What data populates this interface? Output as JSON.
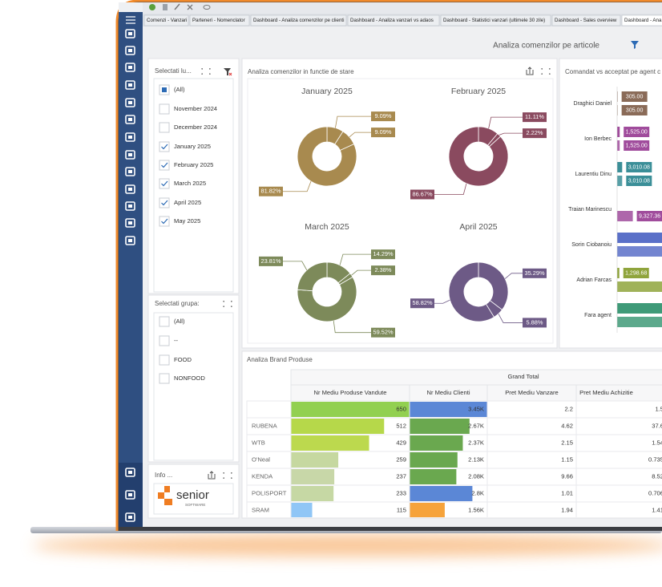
{
  "tabs": [
    "Comenzi - Vanzari",
    "Parteneri - Nomenclator",
    "Dashboard - Analiza comenzilor pe clienti",
    "Dashboard - Analiza vanzari vs adaos",
    "Dashboard - Statistici vanzari (ultimele 30 zile)",
    "Dashboard - Sales overview",
    "Dashboard - Ana"
  ],
  "header": {
    "title": "Analiza comenzilor pe articole"
  },
  "month_filter": {
    "title": "Selectati lu...",
    "items": [
      {
        "label": "(All)",
        "state": "partial"
      },
      {
        "label": "November 2024",
        "state": "unchecked"
      },
      {
        "label": "December 2024",
        "state": "unchecked"
      },
      {
        "label": "January 2025",
        "state": "checked"
      },
      {
        "label": "February 2025",
        "state": "checked"
      },
      {
        "label": "March 2025",
        "state": "checked"
      },
      {
        "label": "April 2025",
        "state": "checked"
      },
      {
        "label": "May 2025",
        "state": "checked"
      }
    ]
  },
  "group_filter": {
    "title": "Selectati grupa:",
    "items": [
      {
        "label": "(All)",
        "state": "unchecked"
      },
      {
        "label": "--",
        "state": "unchecked"
      },
      {
        "label": "FOOD",
        "state": "unchecked"
      },
      {
        "label": "NONFOOD",
        "state": "unchecked"
      }
    ]
  },
  "info": {
    "title": "Info ...",
    "logo": "senior",
    "logo_sub": "SOFTWARE"
  },
  "donut_panel": {
    "title": "Analiza comenzilor in functie de stare"
  },
  "chart_data": [
    {
      "type": "pie",
      "title": "January 2025",
      "values": [
        9.09,
        9.09,
        81.82
      ],
      "value_labels": [
        "9.09%",
        "9.09%",
        "81.82%"
      ],
      "color": "#a88a4f"
    },
    {
      "type": "pie",
      "title": "February 2025",
      "values": [
        11.11,
        2.22,
        86.67
      ],
      "value_labels": [
        "11.11%",
        "2.22%",
        "86.67%"
      ],
      "color": "#8a4a5f"
    },
    {
      "type": "pie",
      "title": "March 2025",
      "values": [
        14.29,
        2.38,
        59.52,
        23.81
      ],
      "value_labels": [
        "14.29%",
        "2.38%",
        "59.52%",
        "23.81%"
      ],
      "color": "#7d8a5a"
    },
    {
      "type": "pie",
      "title": "April 2025",
      "values": [
        35.29,
        5.88,
        58.82
      ],
      "value_labels": [
        "35.29%",
        "5.88%",
        "58.82%"
      ],
      "color": "#6d5a86"
    },
    {
      "type": "bar",
      "orientation": "horizontal",
      "title": "Comandat vs acceptat pe agent c",
      "categories": [
        "Draghici Daniel",
        "Ion Berbec",
        "Laurentiu Dinu",
        "Traian Marinescu",
        "Sorin Ciobanoiu",
        "Adrian Farcas",
        "Fara agent"
      ],
      "colors": [
        "#8a6b58",
        "#a04c9c",
        "#3b8f98",
        "#a04c9c",
        "#5a70c8",
        "#8fa43c",
        "#3f9a78"
      ],
      "series": [
        {
          "values": [
            305,
            1525,
            3010.08,
            null,
            30000,
            1298.68,
            30000
          ],
          "value_labels": [
            "305.00",
            "1,525.00",
            "3,010.08",
            null,
            null,
            "1,298.68",
            null
          ]
        },
        {
          "values": [
            305,
            1525,
            3010.08,
            9327.36,
            30000,
            30000,
            30000
          ],
          "value_labels": [
            "305.00",
            "1,525.00",
            "3,010.08",
            "9,327.36",
            null,
            null,
            null
          ]
        }
      ]
    }
  ],
  "table": {
    "title": "Analiza Brand Produse",
    "group_header": "Grand Total",
    "columns": [
      "Nr Mediu Produse Vandute",
      "Nr Mediu Clienti",
      "Pret Mediu Vanzare",
      "Pret Mediu Achizitie"
    ],
    "rows": [
      [
        null,
        "650",
        "3.45K",
        "2.2",
        "1.5"
      ],
      [
        "RUBENA",
        "512",
        "2.67K",
        "4.62",
        "37.6"
      ],
      [
        "WTB",
        "429",
        "2.37K",
        "2.15",
        "1.54"
      ],
      [
        "O'Neal",
        "259",
        "2.13K",
        "1.15",
        "0.735"
      ],
      [
        "KENDA",
        "237",
        "2.08K",
        "9.66",
        "8.52"
      ],
      [
        "POLISPORT",
        "233",
        "2.8K",
        "1.01",
        "0.706"
      ],
      [
        "SRAM",
        "115",
        "1.56K",
        "1.94",
        "1.41"
      ]
    ],
    "bar_colors": [
      [
        "#92d050",
        "#b6d84a",
        "#bcd94e",
        "#c6d8a0",
        "#c8d7a8",
        "#c6d8a4",
        "#90c6f6"
      ],
      [
        "#5b87d6",
        "#6aa84f",
        "#6aa84f",
        "#6aa84f",
        "#6aa84f",
        "#5b87d6",
        "#f6a33b"
      ]
    ]
  }
}
